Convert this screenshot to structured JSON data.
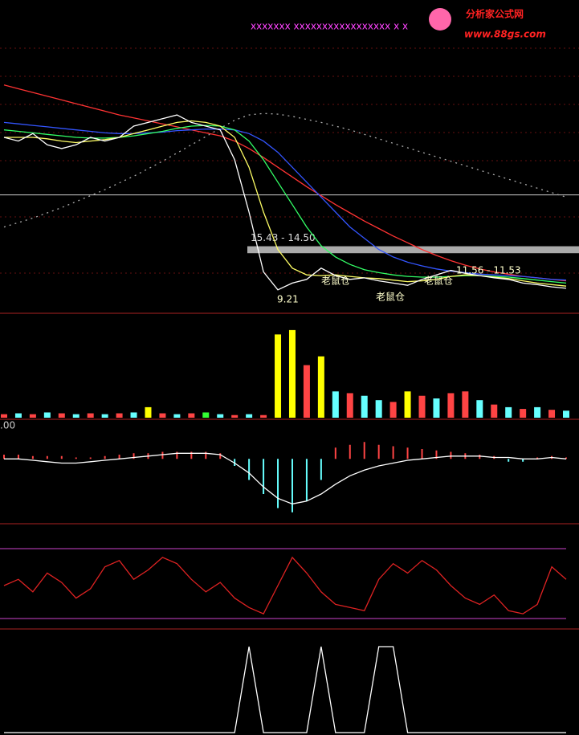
{
  "header": {
    "logo": "分析家公式网",
    "url": "www.88gs.com",
    "marks": "xxxxxxx xxxxxxxxxxxxxxxxx x x"
  },
  "chart_data": [
    {
      "type": "line",
      "ylim": [
        7,
        43
      ],
      "band": {
        "label": "15.43 - 14.50",
        "range": [
          14.5,
          15.43
        ]
      },
      "level": 22.3,
      "annotations": [
        "9.21",
        "11.56 - 11.53",
        "老鼠仓",
        "老鼠仓",
        "老鼠仓"
      ],
      "series": [
        {
          "color": "#ff3333",
          "values": [
            37,
            36.5,
            36,
            35.5,
            35,
            34.5,
            34,
            33.5,
            33,
            32.6,
            32.2,
            31.8,
            31.4,
            31,
            30.6,
            30.2,
            29.5,
            28.5,
            27.3,
            26,
            24.7,
            23.4,
            22.2,
            21,
            19.9,
            18.8,
            17.8,
            16.8,
            15.9,
            15,
            14.2,
            13.5,
            12.9,
            12.4,
            12,
            11.7,
            11.4,
            11.2,
            11,
            10.8
          ]
        },
        {
          "color": "#aaaaaa",
          "dash": true,
          "values": [
            18,
            18.6,
            19.2,
            19.9,
            20.6,
            21.4,
            22.2,
            23,
            23.9,
            24.8,
            25.8,
            26.8,
            27.9,
            29,
            30.1,
            31.2,
            32.3,
            33,
            33.2,
            33.1,
            32.8,
            32.4,
            32,
            31.5,
            31,
            30.4,
            29.8,
            29.2,
            28.6,
            28,
            27.4,
            26.8,
            26.2,
            25.6,
            25,
            24.4,
            23.8,
            23.2,
            22.6,
            22
          ]
        },
        {
          "color": "#3355ff",
          "values": [
            32,
            31.8,
            31.6,
            31.4,
            31.2,
            31,
            30.8,
            30.6,
            30.5,
            30.5,
            30.6,
            30.7,
            30.9,
            31,
            31.1,
            31.1,
            31,
            30.5,
            29.5,
            28,
            26,
            24,
            22,
            20,
            18,
            16.5,
            15,
            14,
            13.3,
            12.8,
            12.4,
            12.1,
            11.9,
            11.7,
            11.6,
            11.5,
            11.4,
            11.2,
            11,
            10.9
          ]
        },
        {
          "color": "#33ff66",
          "values": [
            31,
            30.8,
            30.6,
            30.4,
            30.2,
            30,
            29.9,
            29.9,
            30,
            30.2,
            30.5,
            30.8,
            31.2,
            31.5,
            31.6,
            31.5,
            31,
            29.5,
            27,
            24,
            21,
            18,
            15.5,
            14,
            13,
            12.3,
            11.9,
            11.6,
            11.4,
            11.3,
            11.3,
            11.4,
            11.5,
            11.5,
            11.4,
            11.3,
            11.1,
            10.9,
            10.7,
            10.5
          ]
        },
        {
          "color": "#ffff66",
          "values": [
            30,
            30,
            30,
            29.8,
            29.5,
            29.3,
            29.5,
            29.7,
            30,
            30.5,
            31,
            31.5,
            32,
            32.2,
            32,
            31.5,
            30,
            26,
            20,
            15,
            12.5,
            11.6,
            11.5,
            11.6,
            11.4,
            11.2,
            11.1,
            10.9,
            10.7,
            10.8,
            11,
            11.4,
            11.6,
            11.5,
            11.3,
            11.1,
            10.8,
            10.5,
            10.3,
            10.1
          ]
        },
        {
          "color": "#ffffff",
          "values": [
            30,
            29.5,
            30.5,
            29,
            28.5,
            29,
            30,
            29.5,
            30,
            31.5,
            32,
            32.5,
            33,
            32,
            31.5,
            31,
            27,
            20,
            12,
            9.6,
            10.5,
            11,
            12.5,
            11.5,
            11,
            11.2,
            10.8,
            10.5,
            10.2,
            11,
            11.6,
            12.2,
            11.8,
            11.5,
            11.2,
            11,
            10.5,
            10.3,
            10,
            9.8
          ]
        }
      ]
    },
    {
      "type": "bar",
      "ylim": [
        0,
        110
      ],
      "values": [
        4,
        5,
        4,
        6,
        5,
        4,
        5,
        4,
        5,
        6,
        12,
        5,
        4,
        5,
        6,
        4,
        3,
        4,
        3,
        95,
        100,
        60,
        70,
        30,
        28,
        25,
        20,
        18,
        30,
        25,
        22,
        28,
        30,
        20,
        15,
        12,
        10,
        12,
        9,
        8
      ],
      "colors": [
        "#ff4444",
        "#66ffff",
        "#ff4444",
        "#66ffff",
        "#ff4444",
        "#66ffff",
        "#ff4444",
        "#66ffff",
        "#ff4444",
        "#66ffff",
        "#ffff00",
        "#ff4444",
        "#66ffff",
        "#ff4444",
        "#33ff33",
        "#66ffff",
        "#ff4444",
        "#66ffff",
        "#ff4444",
        "#ffff00",
        "#ffff00",
        "#ff4444",
        "#ffff00",
        "#66ffff",
        "#ff4444",
        "#66ffff",
        "#66ffff",
        "#ff4444",
        "#ffff00",
        "#ff4444",
        "#66ffff",
        "#ff4444",
        "#ff4444",
        "#66ffff",
        "#ff4444",
        "#66ffff",
        "#ff4444",
        "#66ffff",
        "#ff4444",
        "#66ffff"
      ]
    },
    {
      "type": "bar",
      "ylim": [
        -45,
        15
      ],
      "annotations": [
        ".00"
      ],
      "values": [
        3,
        3,
        2,
        2,
        2,
        1,
        1,
        2,
        3,
        4,
        4,
        5,
        5,
        5,
        5,
        4,
        -5,
        -15,
        -25,
        -35,
        -38,
        -30,
        -15,
        8,
        10,
        12,
        10,
        9,
        8,
        7,
        6,
        5,
        4,
        3,
        2,
        -2,
        -2,
        1,
        2,
        1
      ],
      "series": [
        {
          "color": "#ffffff",
          "values": [
            0,
            0,
            -1,
            -2,
            -3,
            -3,
            -2,
            -1,
            0,
            1,
            2,
            3,
            4,
            4,
            4,
            3,
            -3,
            -10,
            -20,
            -28,
            -32,
            -30,
            -25,
            -18,
            -12,
            -8,
            -5,
            -3,
            -1,
            0,
            1,
            2,
            2,
            2,
            1,
            1,
            0,
            0,
            1,
            0
          ]
        }
      ]
    },
    {
      "type": "line",
      "ylim": [
        0,
        100
      ],
      "series": [
        {
          "color": "#dd2222",
          "values": [
            50,
            60,
            40,
            70,
            55,
            30,
            45,
            80,
            90,
            60,
            75,
            95,
            85,
            60,
            40,
            55,
            30,
            15,
            5,
            50,
            95,
            70,
            40,
            20,
            15,
            10,
            60,
            85,
            70,
            90,
            75,
            50,
            30,
            20,
            35,
            10,
            5,
            20,
            80,
            60
          ]
        }
      ]
    },
    {
      "type": "line",
      "ylim": [
        0,
        1
      ],
      "series": [
        {
          "color": "#ffffff",
          "values": [
            0,
            0,
            0,
            0,
            0,
            0,
            0,
            0,
            0,
            0,
            0,
            0,
            0,
            0,
            0,
            0,
            0,
            1,
            0,
            0,
            0,
            0,
            1,
            0,
            0,
            0,
            1,
            1,
            0,
            0,
            0,
            0,
            0,
            0,
            0,
            0,
            0,
            0,
            0,
            0
          ]
        }
      ]
    }
  ]
}
